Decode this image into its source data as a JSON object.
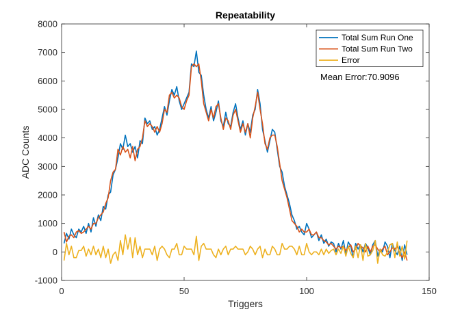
{
  "chart_data": {
    "type": "line",
    "title": "Repeatability",
    "xlabel": "Triggers",
    "ylabel": "ADC Counts",
    "xlim": [
      0,
      150
    ],
    "ylim": [
      -1000,
      8000
    ],
    "xticks": [
      0,
      50,
      100,
      150
    ],
    "yticks": [
      -1000,
      0,
      1000,
      2000,
      3000,
      4000,
      5000,
      6000,
      7000,
      8000
    ],
    "grid": false,
    "legend_position": "top-right",
    "annotation": "Mean Error:70.9096",
    "series": [
      {
        "name": "Total Sum Run One",
        "color": "#0072BD",
        "values": [
          300,
          650,
          450,
          800,
          600,
          500,
          800,
          700,
          900,
          650,
          1000,
          700,
          1200,
          900,
          1300,
          1100,
          1600,
          1500,
          2000,
          2100,
          2700,
          2900,
          3300,
          3800,
          3600,
          4100,
          3700,
          3800,
          3500,
          3700,
          3300,
          3900,
          3800,
          4700,
          4500,
          4600,
          4300,
          4400,
          4100,
          4300,
          4700,
          5100,
          4800,
          5300,
          5700,
          5500,
          5800,
          5300,
          5000,
          5200,
          5400,
          5600,
          6600,
          6500,
          7050,
          6300,
          6200,
          5500,
          5000,
          4700,
          5100,
          4600,
          4900,
          5300,
          4600,
          4400,
          4900,
          4500,
          4400,
          4900,
          5200,
          4700,
          4300,
          4600,
          4100,
          4500,
          4200,
          4800,
          5000,
          5700,
          5200,
          4300,
          3900,
          3500,
          3900,
          4300,
          4200,
          3600,
          3000,
          2800,
          2300,
          2000,
          1700,
          1300,
          1100,
          800,
          900,
          700,
          600,
          1000,
          800,
          500,
          600,
          700,
          400,
          600,
          300,
          450,
          200,
          350,
          300,
          0,
          300,
          100,
          400,
          -100,
          350,
          200,
          -200,
          300,
          100,
          250,
          0,
          300,
          150,
          -100,
          250,
          400,
          -150,
          100,
          0,
          350,
          200,
          -200,
          300,
          50,
          -100,
          200,
          -300,
          250,
          -100
        ]
      },
      {
        "name": "Total Sum Run Two",
        "color": "#D95319",
        "values": [
          700,
          350,
          550,
          600,
          500,
          700,
          750,
          650,
          700,
          800,
          900,
          800,
          1000,
          1000,
          1200,
          1300,
          1400,
          1700,
          1900,
          2500,
          2800,
          2900,
          3600,
          3400,
          3700,
          3500,
          3600,
          3300,
          3700,
          3200,
          3600,
          3700,
          4000,
          4600,
          4400,
          4500,
          4400,
          4200,
          4400,
          4200,
          4500,
          5000,
          4900,
          5500,
          5600,
          5400,
          5500,
          5400,
          5100,
          5000,
          5300,
          5500,
          6500,
          6600,
          6500,
          6600,
          6000,
          5200,
          4900,
          4600,
          5000,
          4700,
          5100,
          5200,
          4700,
          4300,
          4700,
          4600,
          4300,
          4800,
          5000,
          4600,
          4200,
          4500,
          4200,
          4500,
          4000,
          4700,
          5100,
          5600,
          5000,
          4500,
          3800,
          3600,
          4000,
          4100,
          4100,
          3700,
          3100,
          2500,
          2200,
          1900,
          1500,
          1100,
          1000,
          900,
          700,
          800,
          700,
          700,
          800,
          600,
          600,
          700,
          500,
          500,
          400,
          350,
          250,
          300,
          200,
          100,
          200,
          150,
          200,
          50,
          150,
          250,
          0,
          100,
          300,
          200,
          150,
          0,
          200,
          0,
          200,
          250,
          100,
          0,
          100,
          200,
          -100,
          0,
          150,
          100,
          200,
          -50,
          -200,
          0,
          -300
        ]
      },
      {
        "name": "Error",
        "color": "#EDB120",
        "values": [
          -300,
          300,
          -100,
          200,
          -200,
          -200,
          50,
          50,
          200,
          -150,
          100,
          -100,
          200,
          -100,
          100,
          -200,
          200,
          -200,
          100,
          -400,
          -100,
          0,
          -300,
          400,
          -100,
          600,
          100,
          500,
          -200,
          500,
          -100,
          200,
          -200,
          100,
          100,
          100,
          -100,
          200,
          -300,
          100,
          200,
          100,
          -100,
          -200,
          100,
          100,
          300,
          -100,
          -100,
          200,
          100,
          100,
          100,
          -100,
          550,
          -300,
          200,
          300,
          100,
          100,
          100,
          -100,
          -200,
          100,
          -100,
          100,
          200,
          -100,
          100,
          100,
          200,
          100,
          100,
          100,
          -100,
          0,
          200,
          100,
          -100,
          100,
          200,
          -200,
          100,
          -100,
          -100,
          200,
          100,
          -100,
          -100,
          300,
          100,
          100,
          200,
          200,
          100,
          -100,
          200,
          -100,
          -100,
          300,
          0,
          -100,
          0,
          0,
          -100,
          100,
          -100,
          100,
          -50,
          50,
          100,
          -100,
          100,
          -50,
          200,
          -150,
          200,
          -50,
          -200,
          200,
          -200,
          250,
          -300,
          300,
          -150,
          -100,
          50,
          400,
          -400,
          100,
          -100,
          -150,
          0,
          250,
          300,
          -200,
          350,
          -150,
          200,
          -250,
          400
        ]
      }
    ]
  }
}
